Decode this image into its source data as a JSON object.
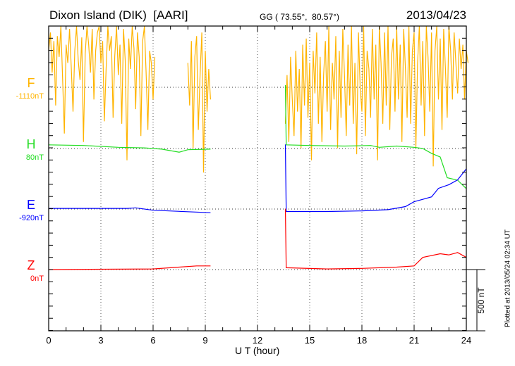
{
  "chart_data": {
    "type": "line",
    "title": "Dixon Island (DIK)  [AARI]",
    "coords": "GG ( 73.55°,  80.57°)",
    "date": "2013/04/23",
    "xlabel": "U T (hour)",
    "xlim": [
      0,
      24
    ],
    "xticks": [
      "0",
      "3",
      "6",
      "9",
      "12",
      "15",
      "18",
      "21",
      "24"
    ],
    "scale_label": "500 nT",
    "scale_nT": 500,
    "plotted_note": "Plotted at 2013/05/24 02:34 UT",
    "grid": true,
    "channels": [
      {
        "name": "F",
        "offset_label": "-1110nT",
        "color": "#ffb400"
      },
      {
        "name": "H",
        "offset_label": "80nT",
        "color": "#22dd22"
      },
      {
        "name": "E",
        "offset_label": "-920nT",
        "color": "#0000ff"
      },
      {
        "name": "Z",
        "offset_label": "0nT",
        "color": "#ff0000"
      }
    ],
    "series": [
      {
        "name": "F",
        "units": "nT relative to offset",
        "step_hours": 0.1,
        "segments": [
          {
            "start": 0.0,
            "values": [
              300,
              450,
              120,
              380,
              -150,
              420,
              250,
              500,
              80,
              -380,
              350,
              200,
              480,
              150,
              -200,
              300,
              500,
              220,
              60,
              410,
              -450,
              280,
              500,
              350,
              120,
              480,
              -100,
              300,
              450,
              500,
              200,
              380,
              -280,
              150,
              500,
              300,
              420,
              -250,
              260,
              500,
              100,
              350,
              -300,
              480,
              220,
              -600,
              400,
              150,
              500,
              320,
              -180,
              450,
              250,
              -400,
              380,
              500,
              120,
              -350,
              300,
              200,
              -100,
              250
            ]
          },
          {
            "start": 8.0,
            "values": [
              200,
              -150,
              380,
              -500,
              250,
              420,
              -350,
              100,
              450,
              -700,
              300,
              -200,
              150,
              -100
            ]
          },
          {
            "start": 13.6,
            "values": [
              -300,
              100,
              -450,
              250,
              -100,
              -400,
              300,
              -200,
              150,
              -500,
              350,
              -150,
              400,
              -250,
              200,
              -600,
              300,
              -50,
              450,
              -300,
              250,
              -450,
              100,
              380,
              -200,
              500,
              -350,
              200,
              -100,
              420,
              -500,
              300,
              -250,
              480,
              100,
              -400,
              350,
              -150,
              500,
              -300,
              200,
              -550,
              450,
              0,
              -200,
              500,
              -400,
              300,
              150,
              -250,
              480,
              -100,
              350,
              -600,
              500,
              200,
              -300,
              450,
              -150,
              500,
              -350,
              250,
              400,
              -200,
              500,
              -100,
              350,
              -450,
              480,
              150,
              -250,
              500,
              -300,
              300,
              450,
              -500,
              200,
              500,
              -150,
              380,
              -400,
              500,
              250,
              -200,
              450,
              -650,
              300,
              500,
              -100,
              400,
              -350,
              480,
              150,
              -250,
              500,
              300,
              -100,
              450,
              200,
              -50,
              400,
              150,
              350,
              -100,
              300,
              200
            ]
          }
        ]
      },
      {
        "name": "H",
        "units": "nT relative to offset",
        "segments": [
          [
            [
              0,
              30
            ],
            [
              2,
              25
            ],
            [
              4,
              10
            ],
            [
              5.5,
              5
            ],
            [
              6.5,
              -5
            ],
            [
              7.5,
              -30
            ],
            [
              8,
              -10
            ],
            [
              9.3,
              -5
            ]
          ],
          [
            [
              13.6,
              520
            ],
            [
              13.65,
              30
            ],
            [
              15,
              25
            ],
            [
              17,
              20
            ],
            [
              18.5,
              25
            ],
            [
              19,
              10
            ],
            [
              20,
              20
            ],
            [
              21,
              10
            ],
            [
              21.5,
              0
            ],
            [
              22,
              -40
            ],
            [
              22.5,
              -70
            ],
            [
              22.9,
              -240
            ],
            [
              23.5,
              -260
            ],
            [
              24,
              -330
            ]
          ]
        ]
      },
      {
        "name": "E",
        "units": "nT relative to offset",
        "segments": [
          [
            [
              0,
              5
            ],
            [
              4.5,
              5
            ],
            [
              5,
              10
            ],
            [
              6,
              -10
            ],
            [
              9.3,
              -30
            ]
          ],
          [
            [
              13.6,
              530
            ],
            [
              13.65,
              -20
            ],
            [
              16,
              -20
            ],
            [
              18,
              -15
            ],
            [
              19.5,
              -5
            ],
            [
              20.5,
              20
            ],
            [
              21,
              60
            ],
            [
              21.5,
              80
            ],
            [
              22,
              100
            ],
            [
              22.4,
              170
            ],
            [
              23,
              200
            ],
            [
              23.5,
              240
            ],
            [
              24,
              330
            ]
          ]
        ]
      },
      {
        "name": "Z",
        "units": "nT relative to offset",
        "segments": [
          [
            [
              0,
              0
            ],
            [
              6,
              5
            ],
            [
              7.5,
              20
            ],
            [
              8.5,
              30
            ],
            [
              9.3,
              30
            ]
          ],
          [
            [
              13.6,
              500
            ],
            [
              13.65,
              15
            ],
            [
              16,
              5
            ],
            [
              18,
              10
            ],
            [
              20,
              20
            ],
            [
              21,
              30
            ],
            [
              21.5,
              100
            ],
            [
              22.5,
              130
            ],
            [
              23,
              120
            ],
            [
              23.5,
              140
            ],
            [
              24,
              100
            ]
          ]
        ]
      }
    ]
  }
}
